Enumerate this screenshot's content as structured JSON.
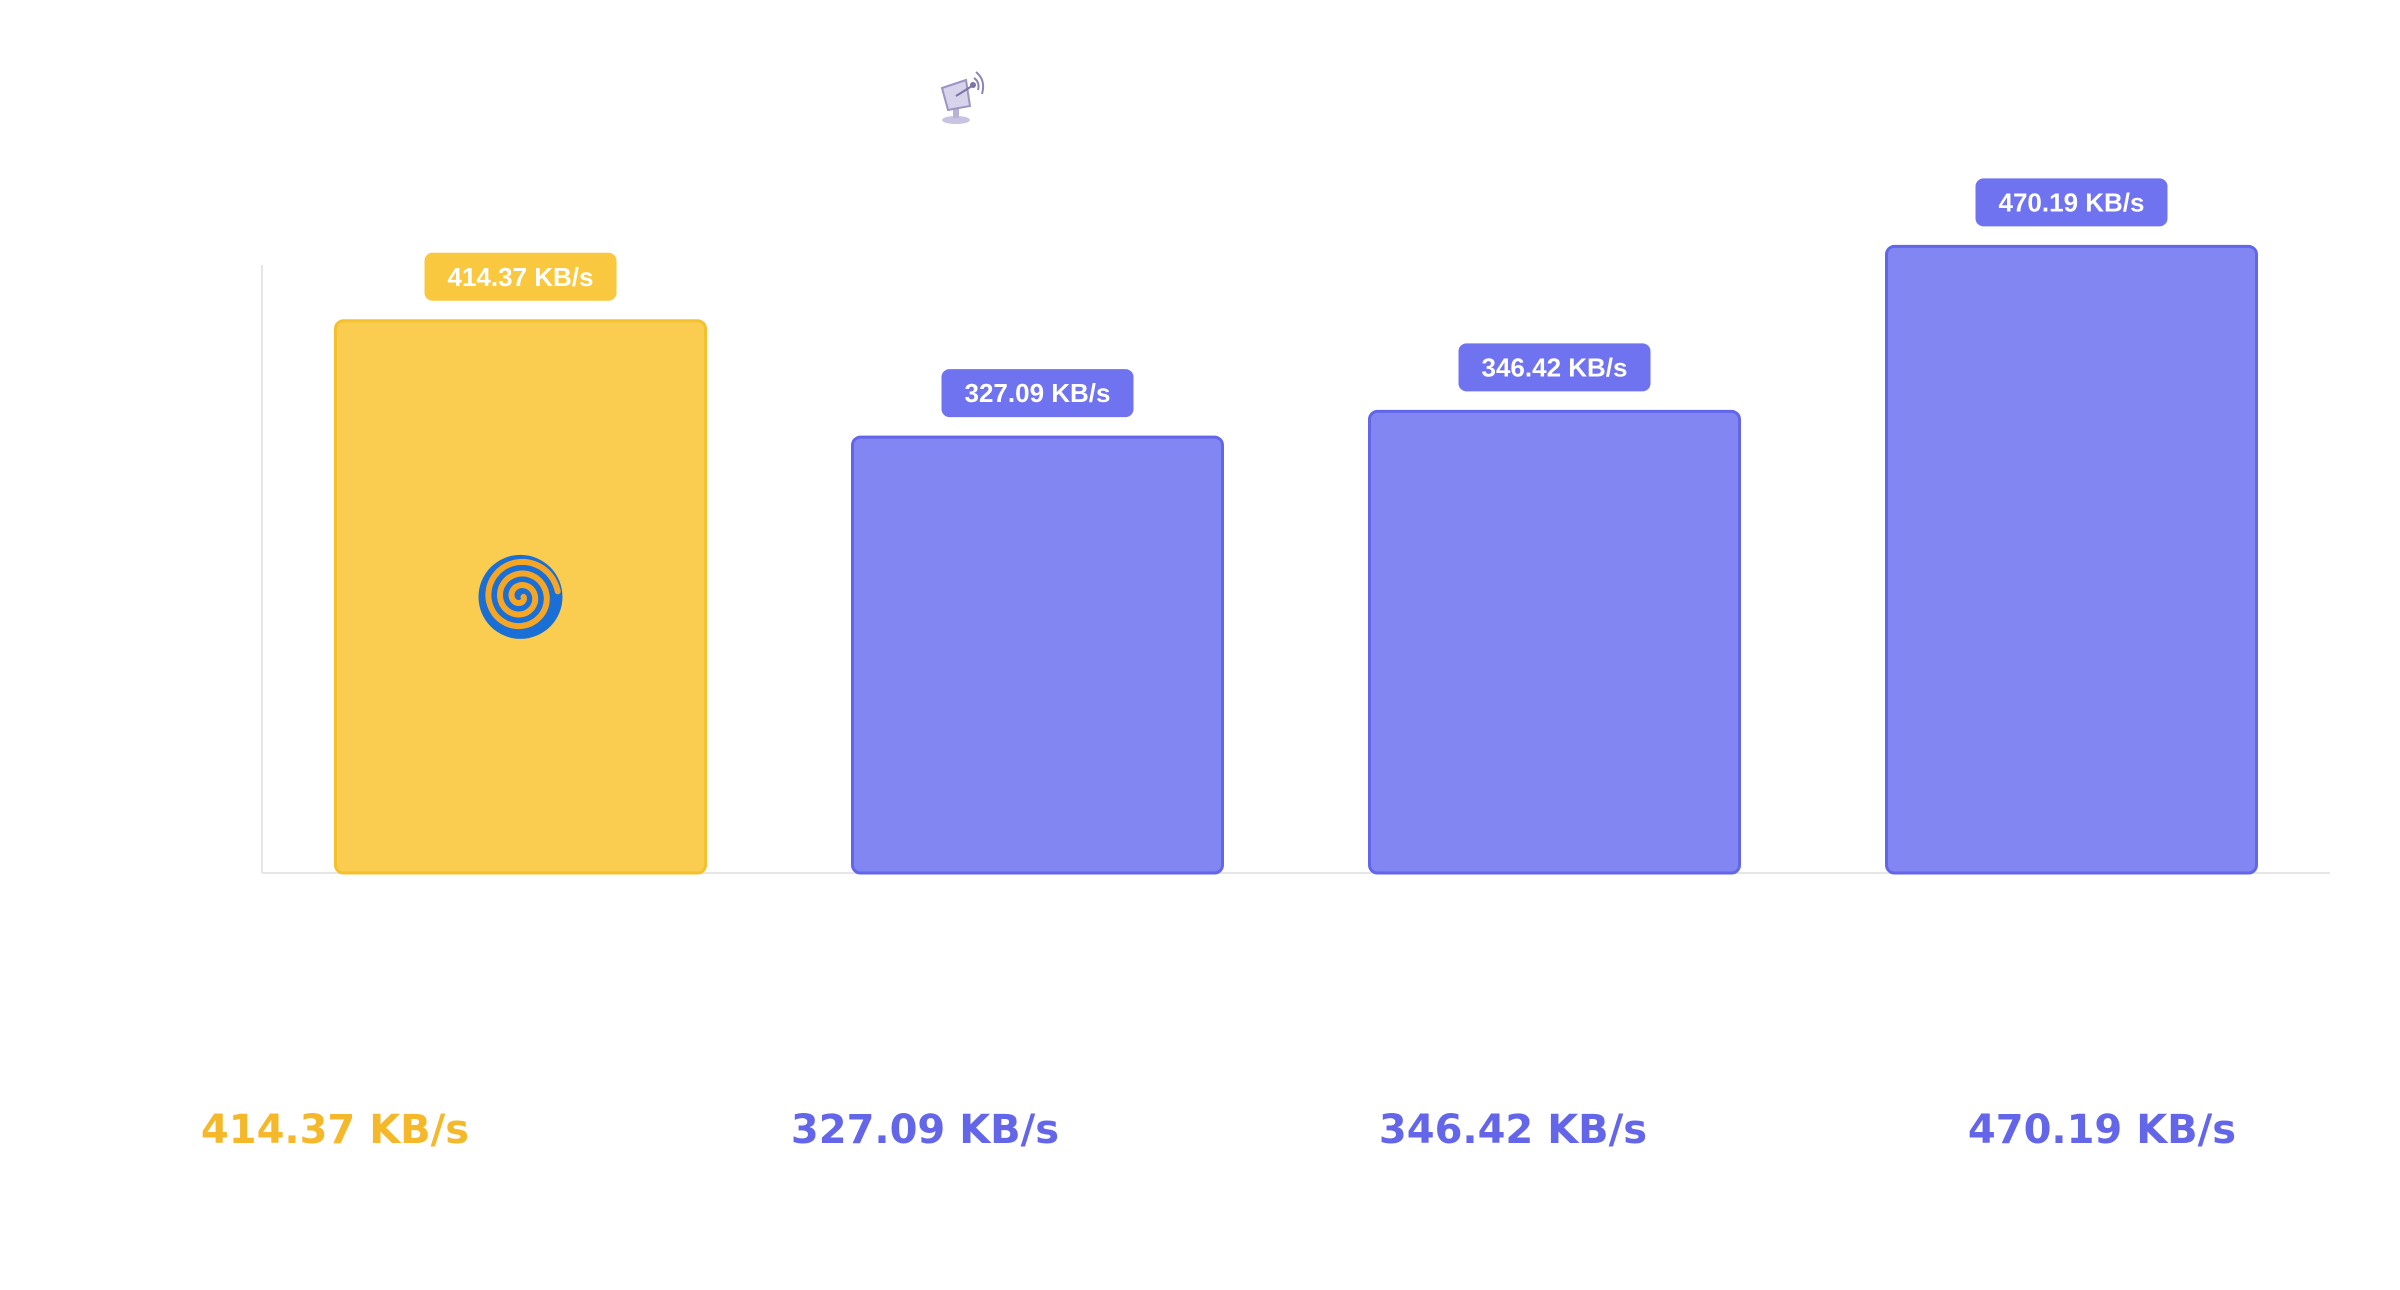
{
  "colors": {
    "highlight_fill": "#FACC4F",
    "highlight_border": "#F5C02E",
    "highlight_badge": "#F9C83F",
    "highlight_text": "#F5B82A",
    "bar_fill": "#8286F3",
    "bar_border": "#6366E9",
    "bar_badge": "#6F73F0",
    "bar_text": "#6366E9",
    "axis": "#E6E6E6"
  },
  "header": {
    "icon": "satellite-dish-icon"
  },
  "chart_data": {
    "type": "bar",
    "categories": [
      "",
      "",
      "",
      ""
    ],
    "values": [
      414.37,
      327.09,
      346.42,
      470.19
    ],
    "data_labels": [
      "414.37 KB/s",
      "327.09 KB/s",
      "346.42 KB/s",
      "470.19 KB/s"
    ],
    "unit": "KB/s",
    "highlighted_index": 0,
    "highlight_icon": "spiral-icon",
    "ylim": [
      0,
      500
    ],
    "grid": false,
    "legend": "none"
  },
  "summary": [
    {
      "text": "414.37 KB/s",
      "highlight": true
    },
    {
      "text": "327.09 KB/s",
      "highlight": false
    },
    {
      "text": "346.42 KB/s",
      "highlight": false
    },
    {
      "text": "470.19 KB/s",
      "highlight": false
    }
  ]
}
